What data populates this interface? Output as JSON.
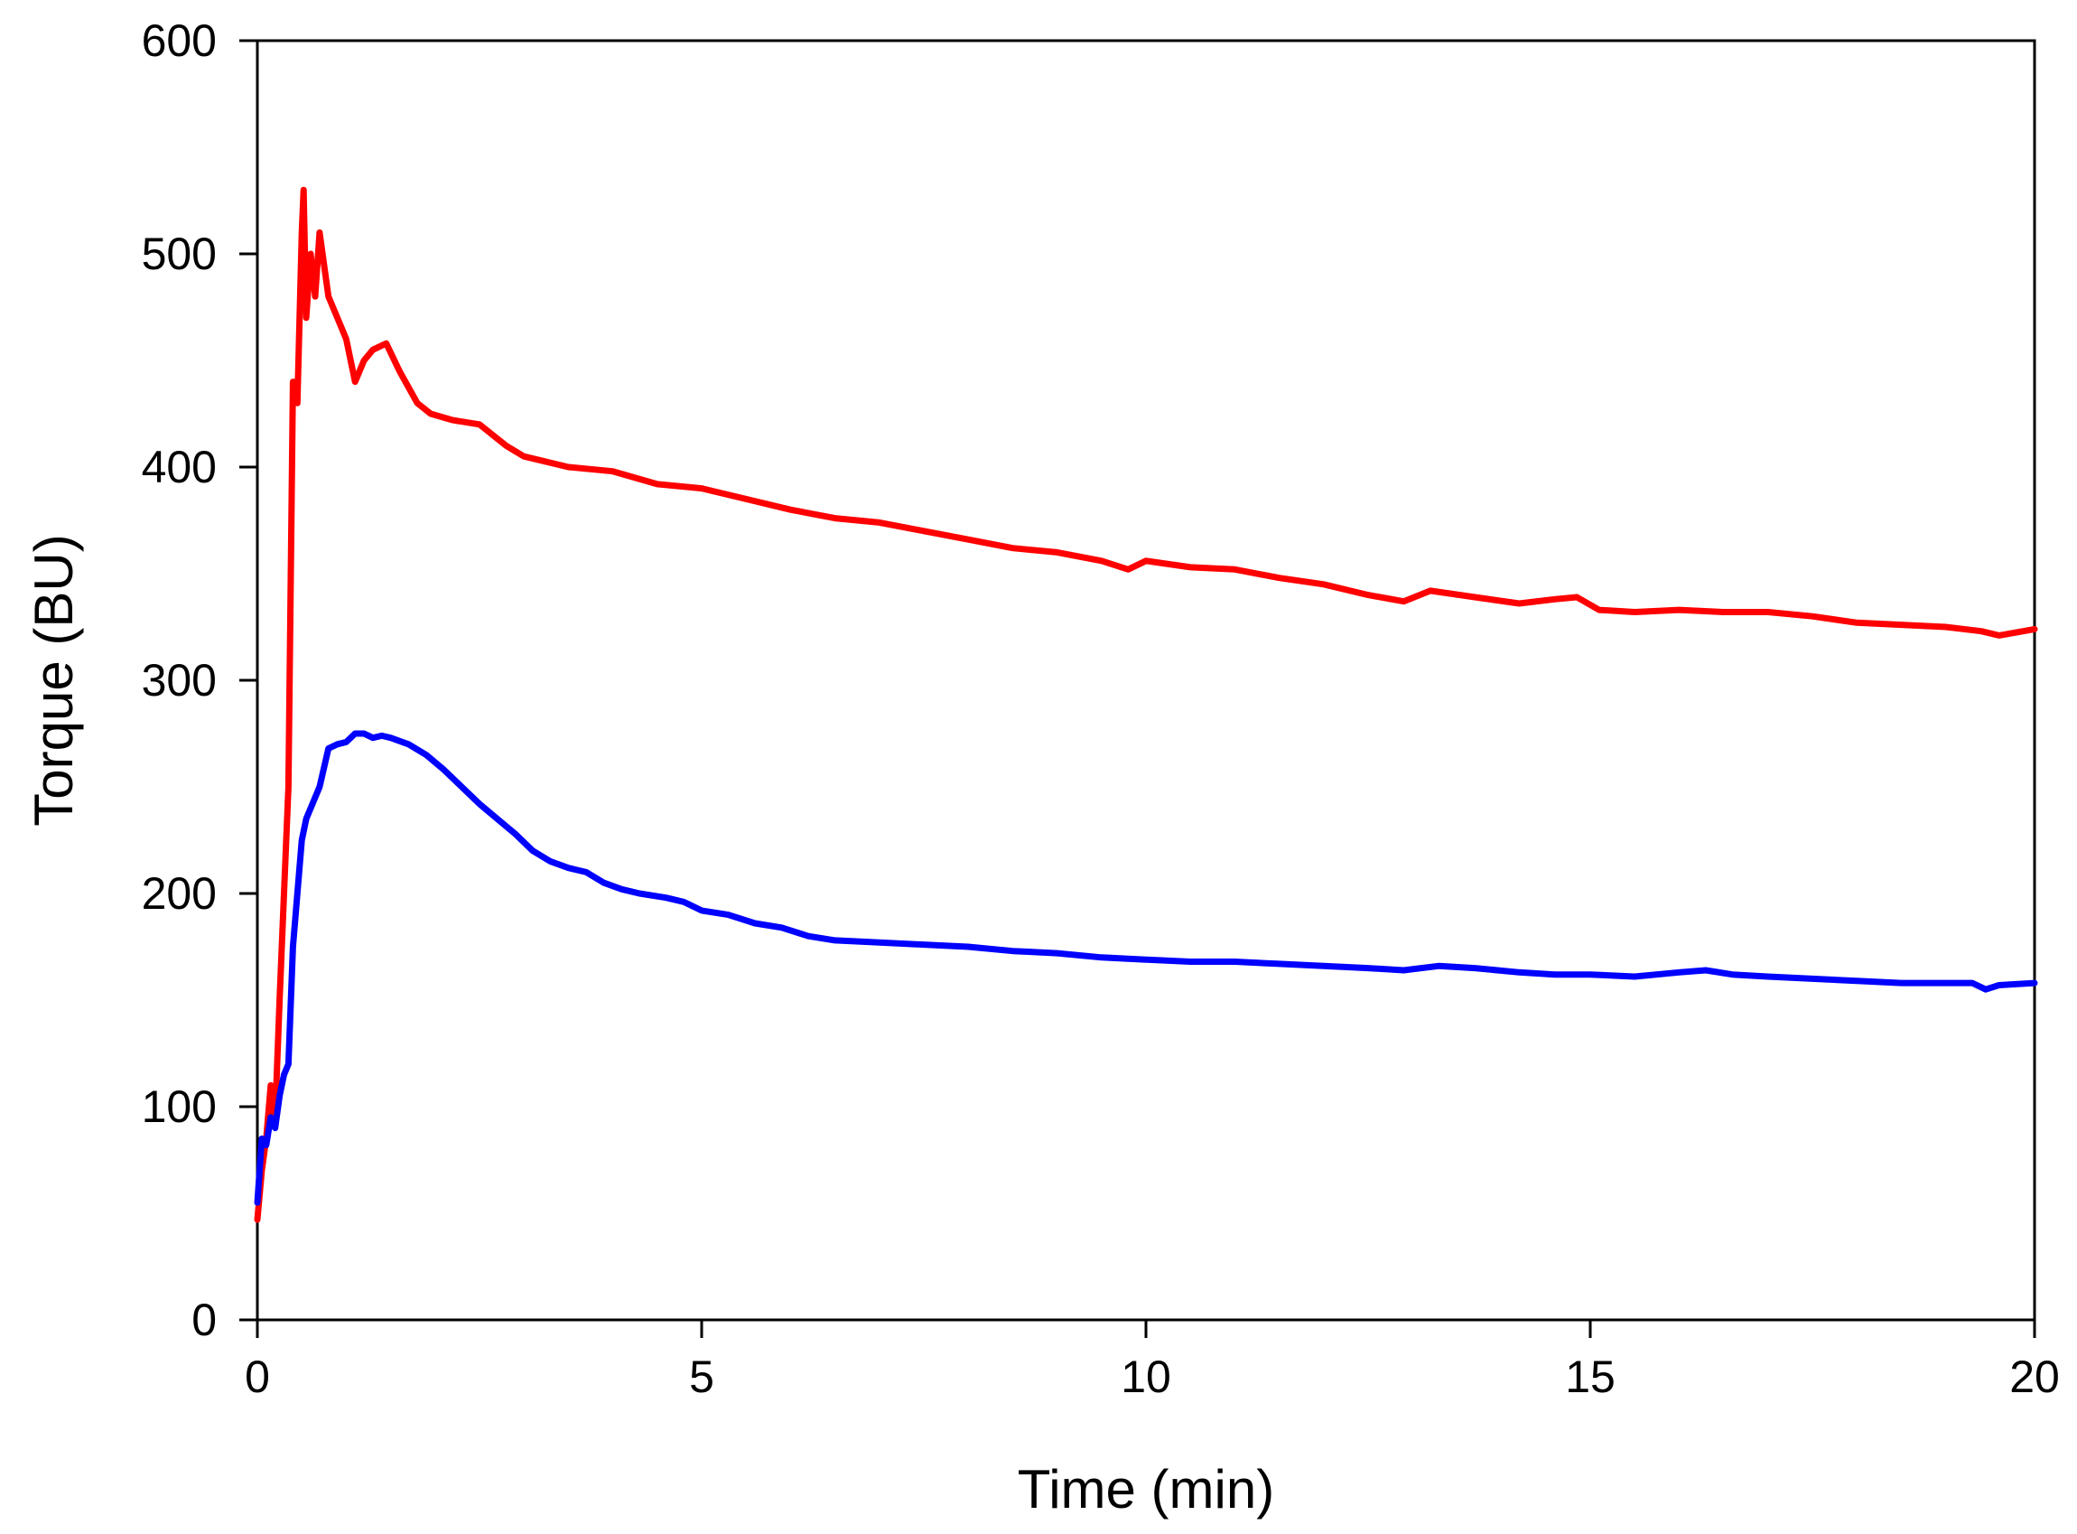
{
  "chart_data": {
    "type": "line",
    "title": "",
    "xlabel": "Time (min)",
    "ylabel": "Torque (BU)",
    "xlim": [
      0,
      20
    ],
    "ylim": [
      0,
      600
    ],
    "x_ticks": [
      "0",
      "5",
      "10",
      "15",
      "20"
    ],
    "y_ticks": [
      "0",
      "100",
      "200",
      "300",
      "400",
      "500",
      "600"
    ],
    "grid": false,
    "legend": "none",
    "series": [
      {
        "color": "#ff0000",
        "points": [
          [
            0.0,
            47
          ],
          [
            0.05,
            70
          ],
          [
            0.1,
            85
          ],
          [
            0.15,
            110
          ],
          [
            0.2,
            95
          ],
          [
            0.25,
            150
          ],
          [
            0.3,
            200
          ],
          [
            0.35,
            250
          ],
          [
            0.4,
            440
          ],
          [
            0.45,
            430
          ],
          [
            0.5,
            510
          ],
          [
            0.52,
            530
          ],
          [
            0.55,
            470
          ],
          [
            0.6,
            500
          ],
          [
            0.65,
            480
          ],
          [
            0.7,
            510
          ],
          [
            0.8,
            480
          ],
          [
            0.9,
            470
          ],
          [
            1.0,
            460
          ],
          [
            1.1,
            440
          ],
          [
            1.2,
            450
          ],
          [
            1.3,
            455
          ],
          [
            1.45,
            458
          ],
          [
            1.6,
            445
          ],
          [
            1.8,
            430
          ],
          [
            1.95,
            425
          ],
          [
            2.2,
            422
          ],
          [
            2.5,
            420
          ],
          [
            2.8,
            410
          ],
          [
            3.0,
            405
          ],
          [
            3.5,
            400
          ],
          [
            4.0,
            398
          ],
          [
            4.5,
            392
          ],
          [
            5.0,
            390
          ],
          [
            5.5,
            385
          ],
          [
            6.0,
            380
          ],
          [
            6.5,
            376
          ],
          [
            7.0,
            374
          ],
          [
            7.5,
            370
          ],
          [
            8.0,
            366
          ],
          [
            8.5,
            362
          ],
          [
            9.0,
            360
          ],
          [
            9.5,
            356
          ],
          [
            9.8,
            352
          ],
          [
            10.0,
            356
          ],
          [
            10.5,
            353
          ],
          [
            11.0,
            352
          ],
          [
            11.5,
            348
          ],
          [
            12.0,
            345
          ],
          [
            12.5,
            340
          ],
          [
            12.9,
            337
          ],
          [
            13.2,
            342
          ],
          [
            13.7,
            339
          ],
          [
            14.2,
            336
          ],
          [
            14.6,
            338
          ],
          [
            14.85,
            339
          ],
          [
            15.1,
            333
          ],
          [
            15.5,
            332
          ],
          [
            16.0,
            333
          ],
          [
            16.5,
            332
          ],
          [
            17.0,
            332
          ],
          [
            17.5,
            330
          ],
          [
            18.0,
            327
          ],
          [
            18.5,
            326
          ],
          [
            19.0,
            325
          ],
          [
            19.4,
            323
          ],
          [
            19.6,
            321
          ],
          [
            20.0,
            324
          ]
        ]
      },
      {
        "color": "#0000ff",
        "points": [
          [
            0.0,
            55
          ],
          [
            0.05,
            85
          ],
          [
            0.1,
            82
          ],
          [
            0.15,
            95
          ],
          [
            0.2,
            90
          ],
          [
            0.25,
            105
          ],
          [
            0.3,
            115
          ],
          [
            0.35,
            120
          ],
          [
            0.4,
            175
          ],
          [
            0.45,
            200
          ],
          [
            0.5,
            225
          ],
          [
            0.55,
            235
          ],
          [
            0.6,
            240
          ],
          [
            0.7,
            250
          ],
          [
            0.8,
            268
          ],
          [
            0.9,
            270
          ],
          [
            1.0,
            271
          ],
          [
            1.1,
            275
          ],
          [
            1.2,
            275
          ],
          [
            1.3,
            273
          ],
          [
            1.4,
            274
          ],
          [
            1.5,
            273
          ],
          [
            1.7,
            270
          ],
          [
            1.9,
            265
          ],
          [
            2.1,
            258
          ],
          [
            2.3,
            250
          ],
          [
            2.5,
            242
          ],
          [
            2.7,
            235
          ],
          [
            2.9,
            228
          ],
          [
            3.1,
            220
          ],
          [
            3.3,
            215
          ],
          [
            3.5,
            212
          ],
          [
            3.7,
            210
          ],
          [
            3.9,
            205
          ],
          [
            4.1,
            202
          ],
          [
            4.3,
            200
          ],
          [
            4.6,
            198
          ],
          [
            4.8,
            196
          ],
          [
            5.0,
            192
          ],
          [
            5.3,
            190
          ],
          [
            5.6,
            186
          ],
          [
            5.9,
            184
          ],
          [
            6.2,
            180
          ],
          [
            6.5,
            178
          ],
          [
            7.0,
            177
          ],
          [
            7.5,
            176
          ],
          [
            8.0,
            175
          ],
          [
            8.5,
            173
          ],
          [
            9.0,
            172
          ],
          [
            9.5,
            170
          ],
          [
            10.0,
            169
          ],
          [
            10.5,
            168
          ],
          [
            11.0,
            168
          ],
          [
            11.5,
            167
          ],
          [
            12.0,
            166
          ],
          [
            12.5,
            165
          ],
          [
            12.9,
            164
          ],
          [
            13.3,
            166
          ],
          [
            13.7,
            165
          ],
          [
            14.2,
            163
          ],
          [
            14.6,
            162
          ],
          [
            15.0,
            162
          ],
          [
            15.5,
            161
          ],
          [
            16.0,
            163
          ],
          [
            16.3,
            164
          ],
          [
            16.6,
            162
          ],
          [
            17.0,
            161
          ],
          [
            17.5,
            160
          ],
          [
            18.0,
            159
          ],
          [
            18.5,
            158
          ],
          [
            19.0,
            158
          ],
          [
            19.3,
            158
          ],
          [
            19.45,
            155
          ],
          [
            19.6,
            157
          ],
          [
            20.0,
            158
          ]
        ]
      }
    ]
  }
}
